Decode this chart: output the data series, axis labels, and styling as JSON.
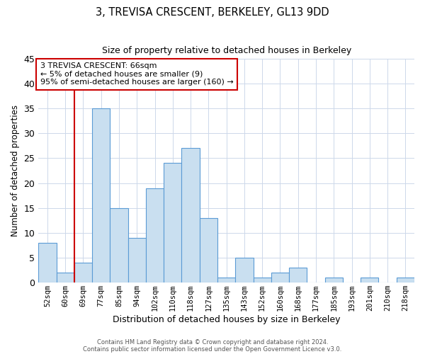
{
  "title": "3, TREVISA CRESCENT, BERKELEY, GL13 9DD",
  "subtitle": "Size of property relative to detached houses in Berkeley",
  "xlabel": "Distribution of detached houses by size in Berkeley",
  "ylabel": "Number of detached properties",
  "bin_labels": [
    "52sqm",
    "60sqm",
    "69sqm",
    "77sqm",
    "85sqm",
    "94sqm",
    "102sqm",
    "110sqm",
    "118sqm",
    "127sqm",
    "135sqm",
    "143sqm",
    "152sqm",
    "160sqm",
    "168sqm",
    "177sqm",
    "185sqm",
    "193sqm",
    "201sqm",
    "210sqm",
    "218sqm"
  ],
  "bar_heights": [
    8,
    2,
    4,
    35,
    15,
    9,
    19,
    24,
    27,
    13,
    1,
    5,
    1,
    2,
    3,
    0,
    1,
    0,
    1,
    0,
    1
  ],
  "bar_color": "#c9dff0",
  "bar_edge_color": "#5b9bd5",
  "vline_color": "#cc0000",
  "annotation_text": "3 TREVISA CRESCENT: 66sqm\n← 5% of detached houses are smaller (9)\n95% of semi-detached houses are larger (160) →",
  "annotation_box_color": "#ffffff",
  "annotation_box_edge_color": "#cc0000",
  "ylim": [
    0,
    45
  ],
  "yticks": [
    0,
    5,
    10,
    15,
    20,
    25,
    30,
    35,
    40,
    45
  ],
  "footer1": "Contains HM Land Registry data © Crown copyright and database right 2024.",
  "footer2": "Contains public sector information licensed under the Open Government Licence v3.0.",
  "background_color": "#ffffff",
  "grid_color": "#cdd8ea"
}
